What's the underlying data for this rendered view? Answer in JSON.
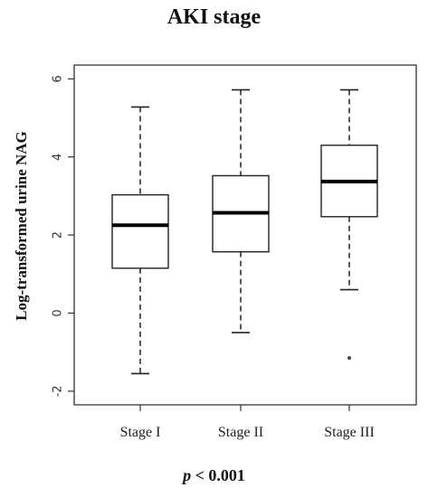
{
  "chart_data": {
    "type": "boxplot",
    "title": "AKI stage",
    "ylabel": "Log-transformed urine NAG",
    "xlabel": "",
    "ylim": [
      -2.3,
      6.3
    ],
    "yticks": [
      -2,
      0,
      2,
      4,
      6
    ],
    "grid": false,
    "categories": [
      "Stage I",
      "Stage II",
      "Stage III"
    ],
    "boxes": [
      {
        "whisker_low": -1.55,
        "q1": 1.15,
        "median": 2.25,
        "q3": 3.03,
        "whisker_high": 5.28,
        "outliers": []
      },
      {
        "whisker_low": -0.5,
        "q1": 1.57,
        "median": 2.57,
        "q3": 3.52,
        "whisker_high": 5.72,
        "outliers": []
      },
      {
        "whisker_low": 0.6,
        "q1": 2.47,
        "median": 3.37,
        "q3": 4.3,
        "whisker_high": 5.72,
        "outliers": [
          -1.15
        ]
      }
    ]
  },
  "footer": {
    "p_symbol": "p",
    "p_rest": " < 0.001"
  }
}
